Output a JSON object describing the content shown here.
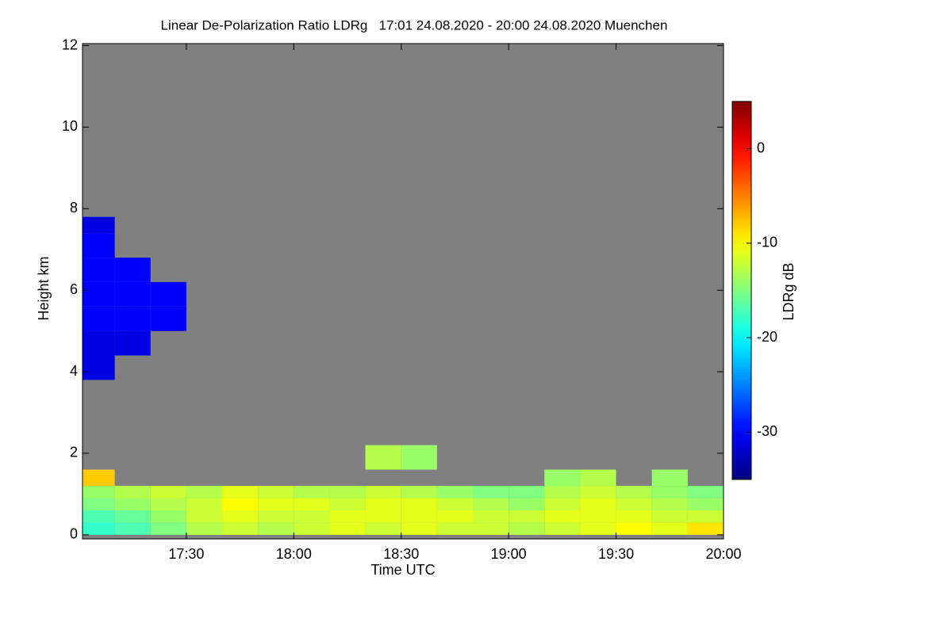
{
  "chart_data": {
    "type": "heatmap",
    "title": "Linear De-Polarization Ratio LDRg   17:01 24.08.2020 - 20:00 24.08.2020 Muenchen",
    "xlabel": "Time UTC",
    "ylabel": "Height km",
    "colorbar_label": "LDRg dB",
    "colormap": "jet",
    "background_color": "#808080",
    "xlim": [
      17.0167,
      20.0
    ],
    "xticks": [
      {
        "value": 17.5,
        "label": "17:30"
      },
      {
        "value": 18.0,
        "label": "18:00"
      },
      {
        "value": 18.5,
        "label": "18:30"
      },
      {
        "value": 19.0,
        "label": "19:00"
      },
      {
        "value": 19.5,
        "label": "19:30"
      },
      {
        "value": 20.0,
        "label": "20:00"
      }
    ],
    "ylim": [
      -0.1,
      12.05
    ],
    "yticks": [
      0,
      2,
      4,
      6,
      8,
      10,
      12
    ],
    "zlim": [
      -35,
      5
    ],
    "zticks": [
      0,
      -10,
      -20,
      -30
    ],
    "x_edges": [
      17.0167,
      17.1667,
      17.3333,
      17.5,
      17.6667,
      17.8333,
      18.0,
      18.1667,
      18.3333,
      18.5,
      18.6667,
      18.8333,
      19.0,
      19.1667,
      19.3333,
      19.5,
      19.6667,
      19.8333,
      20.0
    ],
    "y_edges": [
      0,
      0.3,
      0.6,
      0.9,
      1.2,
      1.6,
      2.2,
      3.8,
      4.4,
      5.0,
      5.6,
      6.2,
      6.8,
      7.4,
      7.8
    ],
    "z": [
      [
        -18,
        -17,
        -15,
        -13,
        -12,
        -13,
        -12,
        -11,
        -12,
        -11,
        -12,
        -12,
        -13,
        -12,
        -11,
        -10,
        -11,
        -9
      ],
      [
        -17,
        -16,
        -14,
        -12,
        -11,
        -12,
        -12,
        -11,
        -11,
        -11,
        -11,
        -12,
        -12,
        -11,
        -11,
        -11,
        -12,
        -12
      ],
      [
        -15,
        -14,
        -13,
        -12,
        -10,
        -11,
        -11,
        -12,
        -11,
        -11,
        -12,
        -13,
        -14,
        -12,
        -11,
        -12,
        -13,
        -14
      ],
      [
        -14,
        -13,
        -12,
        -13,
        -11,
        -12,
        -13,
        -13,
        -12,
        -13,
        -14,
        -15,
        -15,
        -13,
        -12,
        -13,
        -14,
        -15
      ],
      [
        -8,
        null,
        null,
        null,
        null,
        null,
        null,
        null,
        null,
        null,
        null,
        null,
        null,
        -14,
        -13,
        null,
        -14,
        null
      ],
      [
        null,
        null,
        null,
        null,
        null,
        null,
        null,
        null,
        -13,
        -14,
        null,
        null,
        null,
        null,
        null,
        null,
        null,
        null
      ],
      [
        null,
        null,
        null,
        null,
        null,
        null,
        null,
        null,
        null,
        null,
        null,
        null,
        null,
        null,
        null,
        null,
        null,
        null
      ],
      [
        -31,
        null,
        null,
        null,
        null,
        null,
        null,
        null,
        null,
        null,
        null,
        null,
        null,
        null,
        null,
        null,
        null,
        null
      ],
      [
        -31,
        -31,
        null,
        null,
        null,
        null,
        null,
        null,
        null,
        null,
        null,
        null,
        null,
        null,
        null,
        null,
        null,
        null
      ],
      [
        -30,
        -30,
        -30,
        null,
        null,
        null,
        null,
        null,
        null,
        null,
        null,
        null,
        null,
        null,
        null,
        null,
        null,
        null
      ],
      [
        -30,
        -30,
        -30,
        null,
        null,
        null,
        null,
        null,
        null,
        null,
        null,
        null,
        null,
        null,
        null,
        null,
        null,
        null
      ],
      [
        -30,
        -30,
        null,
        null,
        null,
        null,
        null,
        null,
        null,
        null,
        null,
        null,
        null,
        null,
        null,
        null,
        null,
        null
      ],
      [
        -30,
        null,
        null,
        null,
        null,
        null,
        null,
        null,
        null,
        null,
        null,
        null,
        null,
        null,
        null,
        null,
        null,
        null
      ],
      [
        -31,
        null,
        null,
        null,
        null,
        null,
        null,
        null,
        null,
        null,
        null,
        null,
        null,
        null,
        null,
        null,
        null,
        null
      ]
    ]
  }
}
